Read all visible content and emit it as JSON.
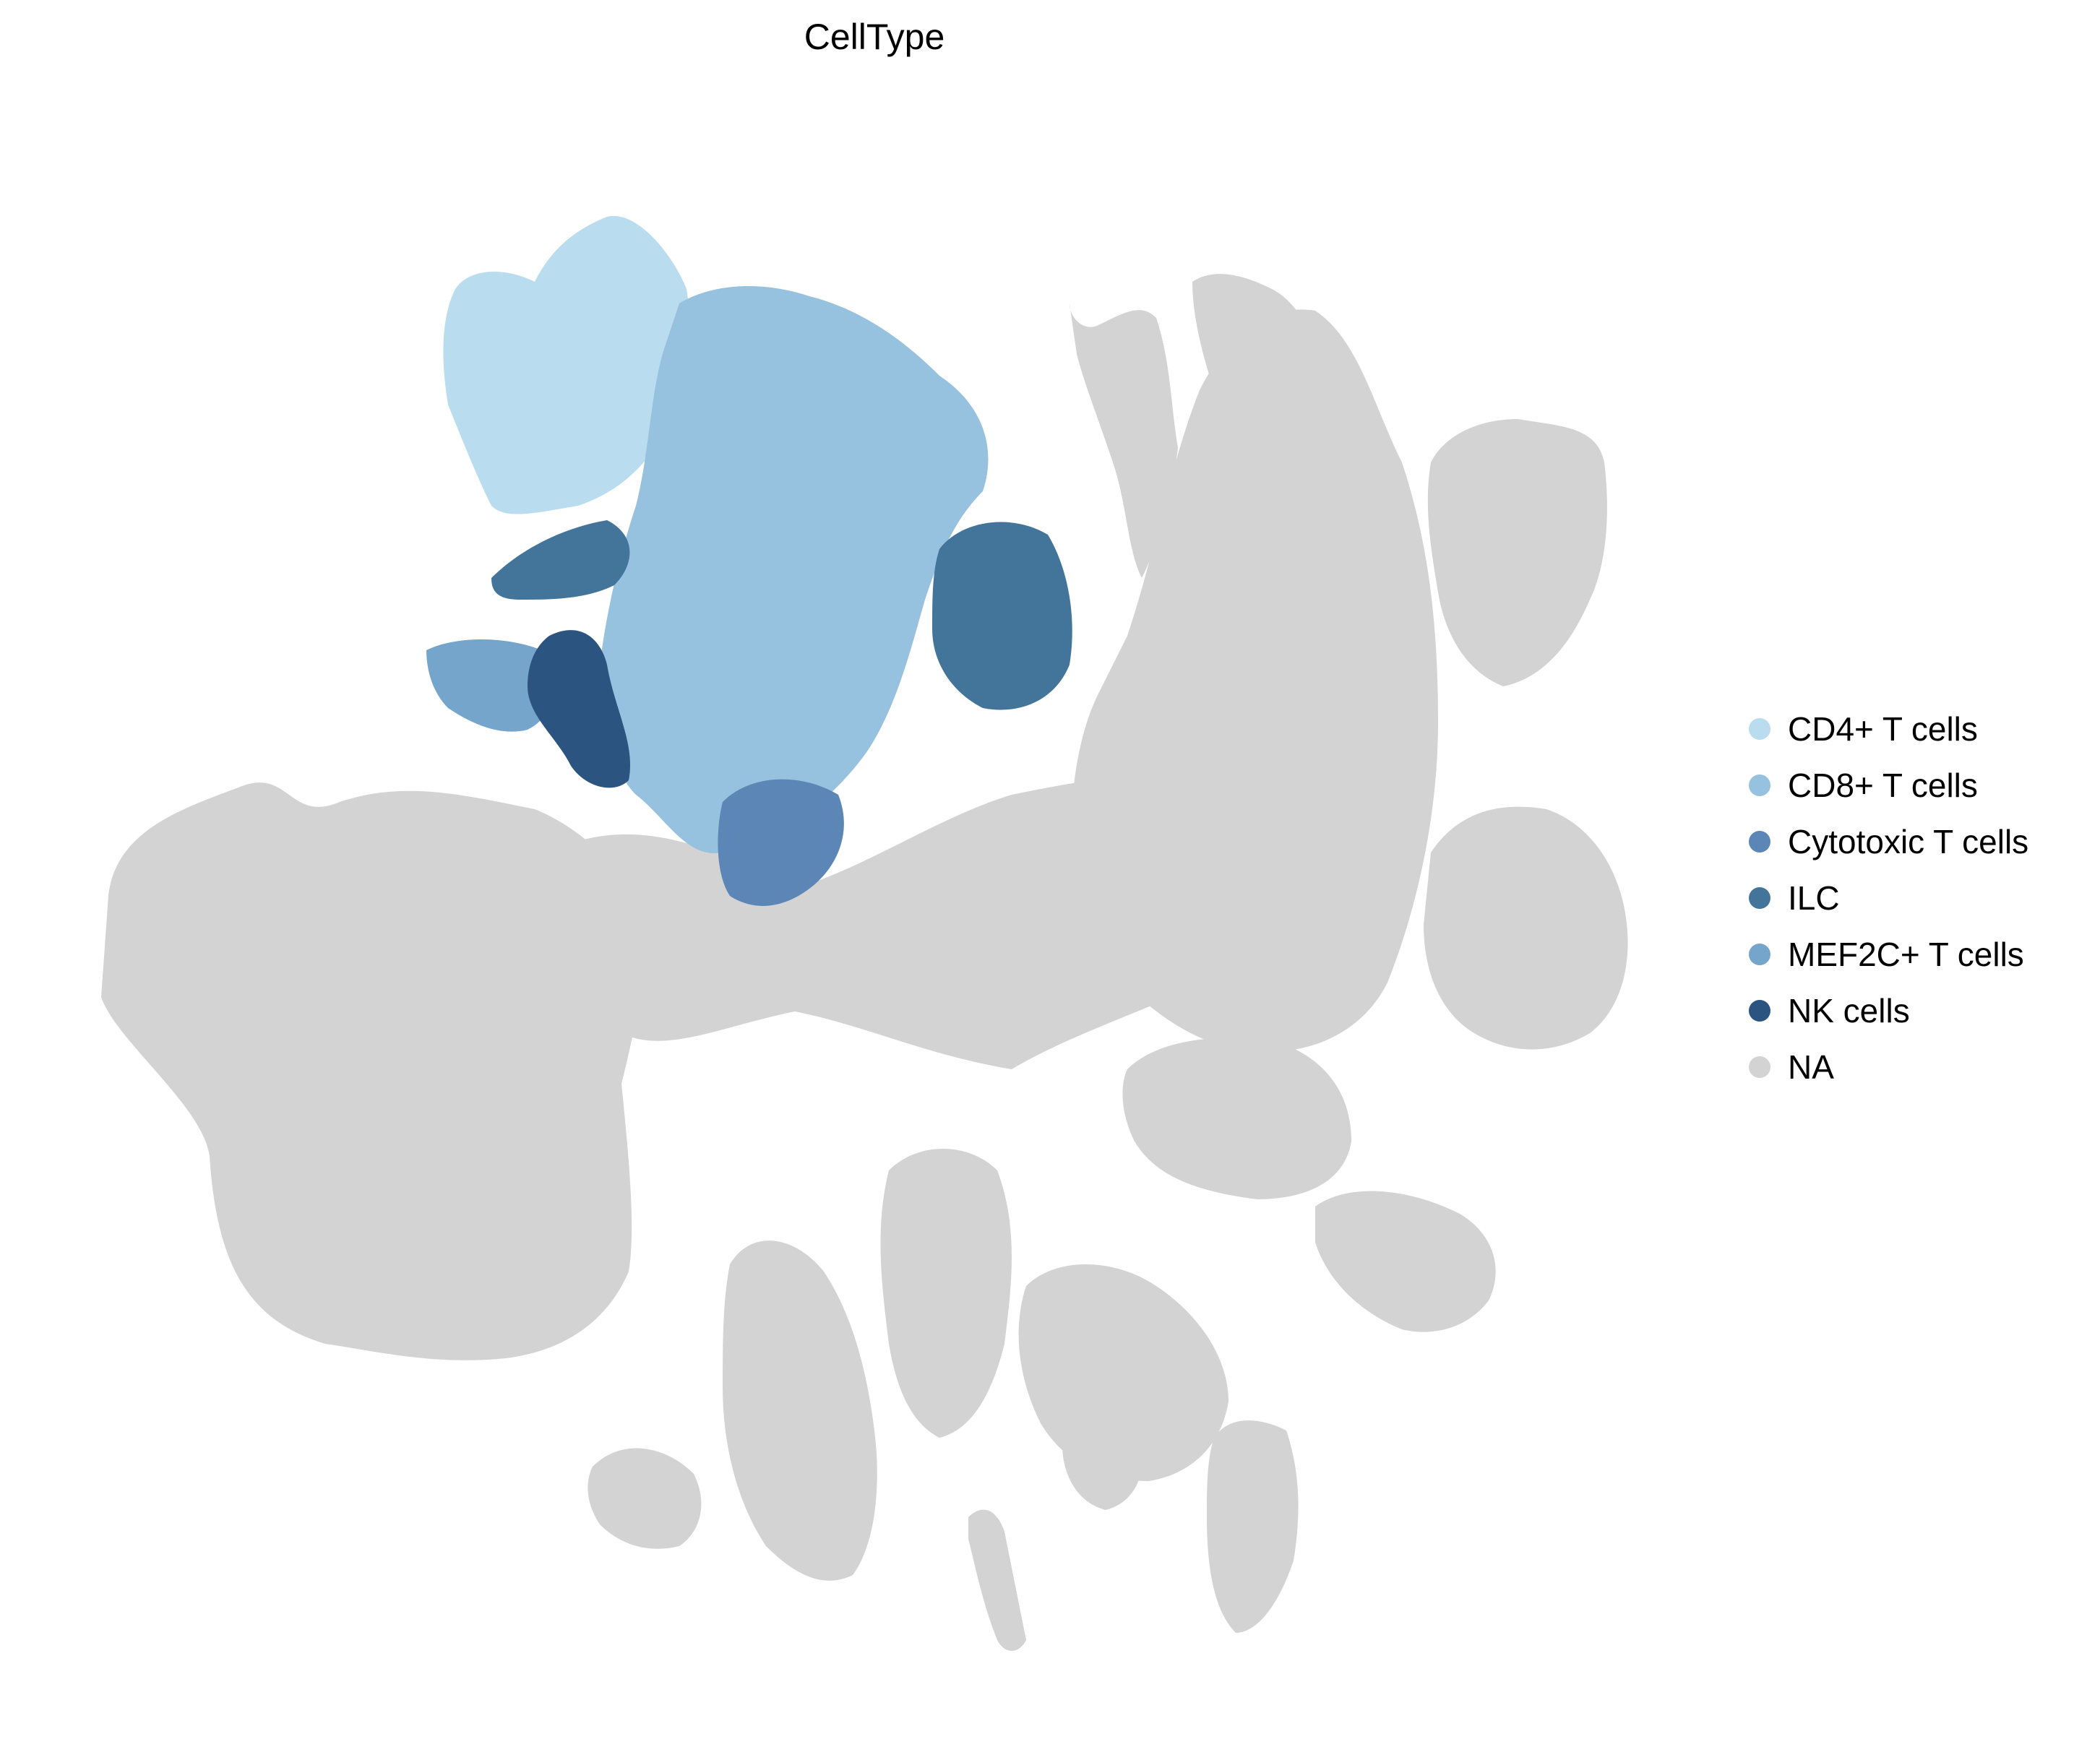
{
  "chart_data": {
    "type": "scatter",
    "title": "CellType",
    "xlabel": "",
    "ylabel": "",
    "grid": false,
    "axes_visible": false,
    "legend_placement": "right",
    "series": [
      {
        "name": "CD4+ T cells",
        "color": "#b9dcef"
      },
      {
        "name": "CD8+ T cells",
        "color": "#96c1df"
      },
      {
        "name": "Cytotoxic T cells",
        "color": "#5b86b5"
      },
      {
        "name": "ILC",
        "color": "#43759b"
      },
      {
        "name": "MEF2C+ T cells",
        "color": "#76a5cc"
      },
      {
        "name": "NK cells",
        "color": "#2b5580"
      },
      {
        "name": "NA",
        "color": "#d3d3d3"
      }
    ]
  }
}
